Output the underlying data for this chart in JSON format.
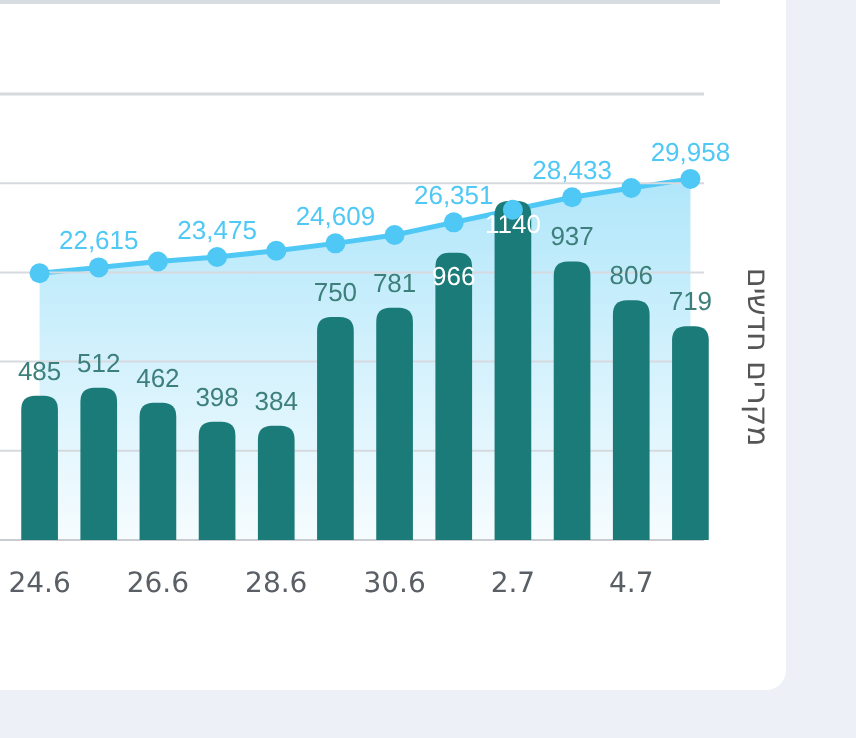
{
  "chart_data": {
    "type": "bar",
    "ylabel": "מקרים חדשים",
    "categories": [
      "24.6",
      null,
      "26.6",
      null,
      "28.6",
      null,
      "30.6",
      null,
      "2.7",
      null,
      "4.7",
      null
    ],
    "series": [
      {
        "color": "#1b7b78",
        "values": [
          485,
          512,
          462,
          398,
          384,
          750,
          781,
          966,
          1140,
          937,
          806,
          719
        ],
        "value_labels": [
          "485",
          "512",
          "462",
          "398",
          "384",
          "750",
          "781",
          "966",
          "1140",
          "937",
          "806",
          "719"
        ]
      },
      {
        "type": "area",
        "axis": "y2",
        "color": "#4fc8f5",
        "values": [
          22130,
          22615,
          23100,
          23475,
          24000,
          24609,
          25300,
          26351,
          27400,
          28433,
          29200,
          29958
        ],
        "value_labels": [
          null,
          "22,615",
          null,
          "23,475",
          null,
          "24,609",
          null,
          "26,351",
          null,
          "28,433",
          null,
          "29,958"
        ]
      }
    ],
    "ylim": [
      0,
      1500
    ],
    "yticks": [
      {
        "value": 0,
        "label": null
      },
      {
        "value": 300,
        "label": null
      },
      {
        "value": 600,
        "label": null
      },
      {
        "value": 900,
        "label": null
      },
      {
        "value": 1200,
        "label": null
      },
      {
        "value": 1500,
        "label": null
      }
    ],
    "y2lim": [
      0,
      37000
    ],
    "grid": "y",
    "tick_labels": "x",
    "marker": "circle"
  }
}
